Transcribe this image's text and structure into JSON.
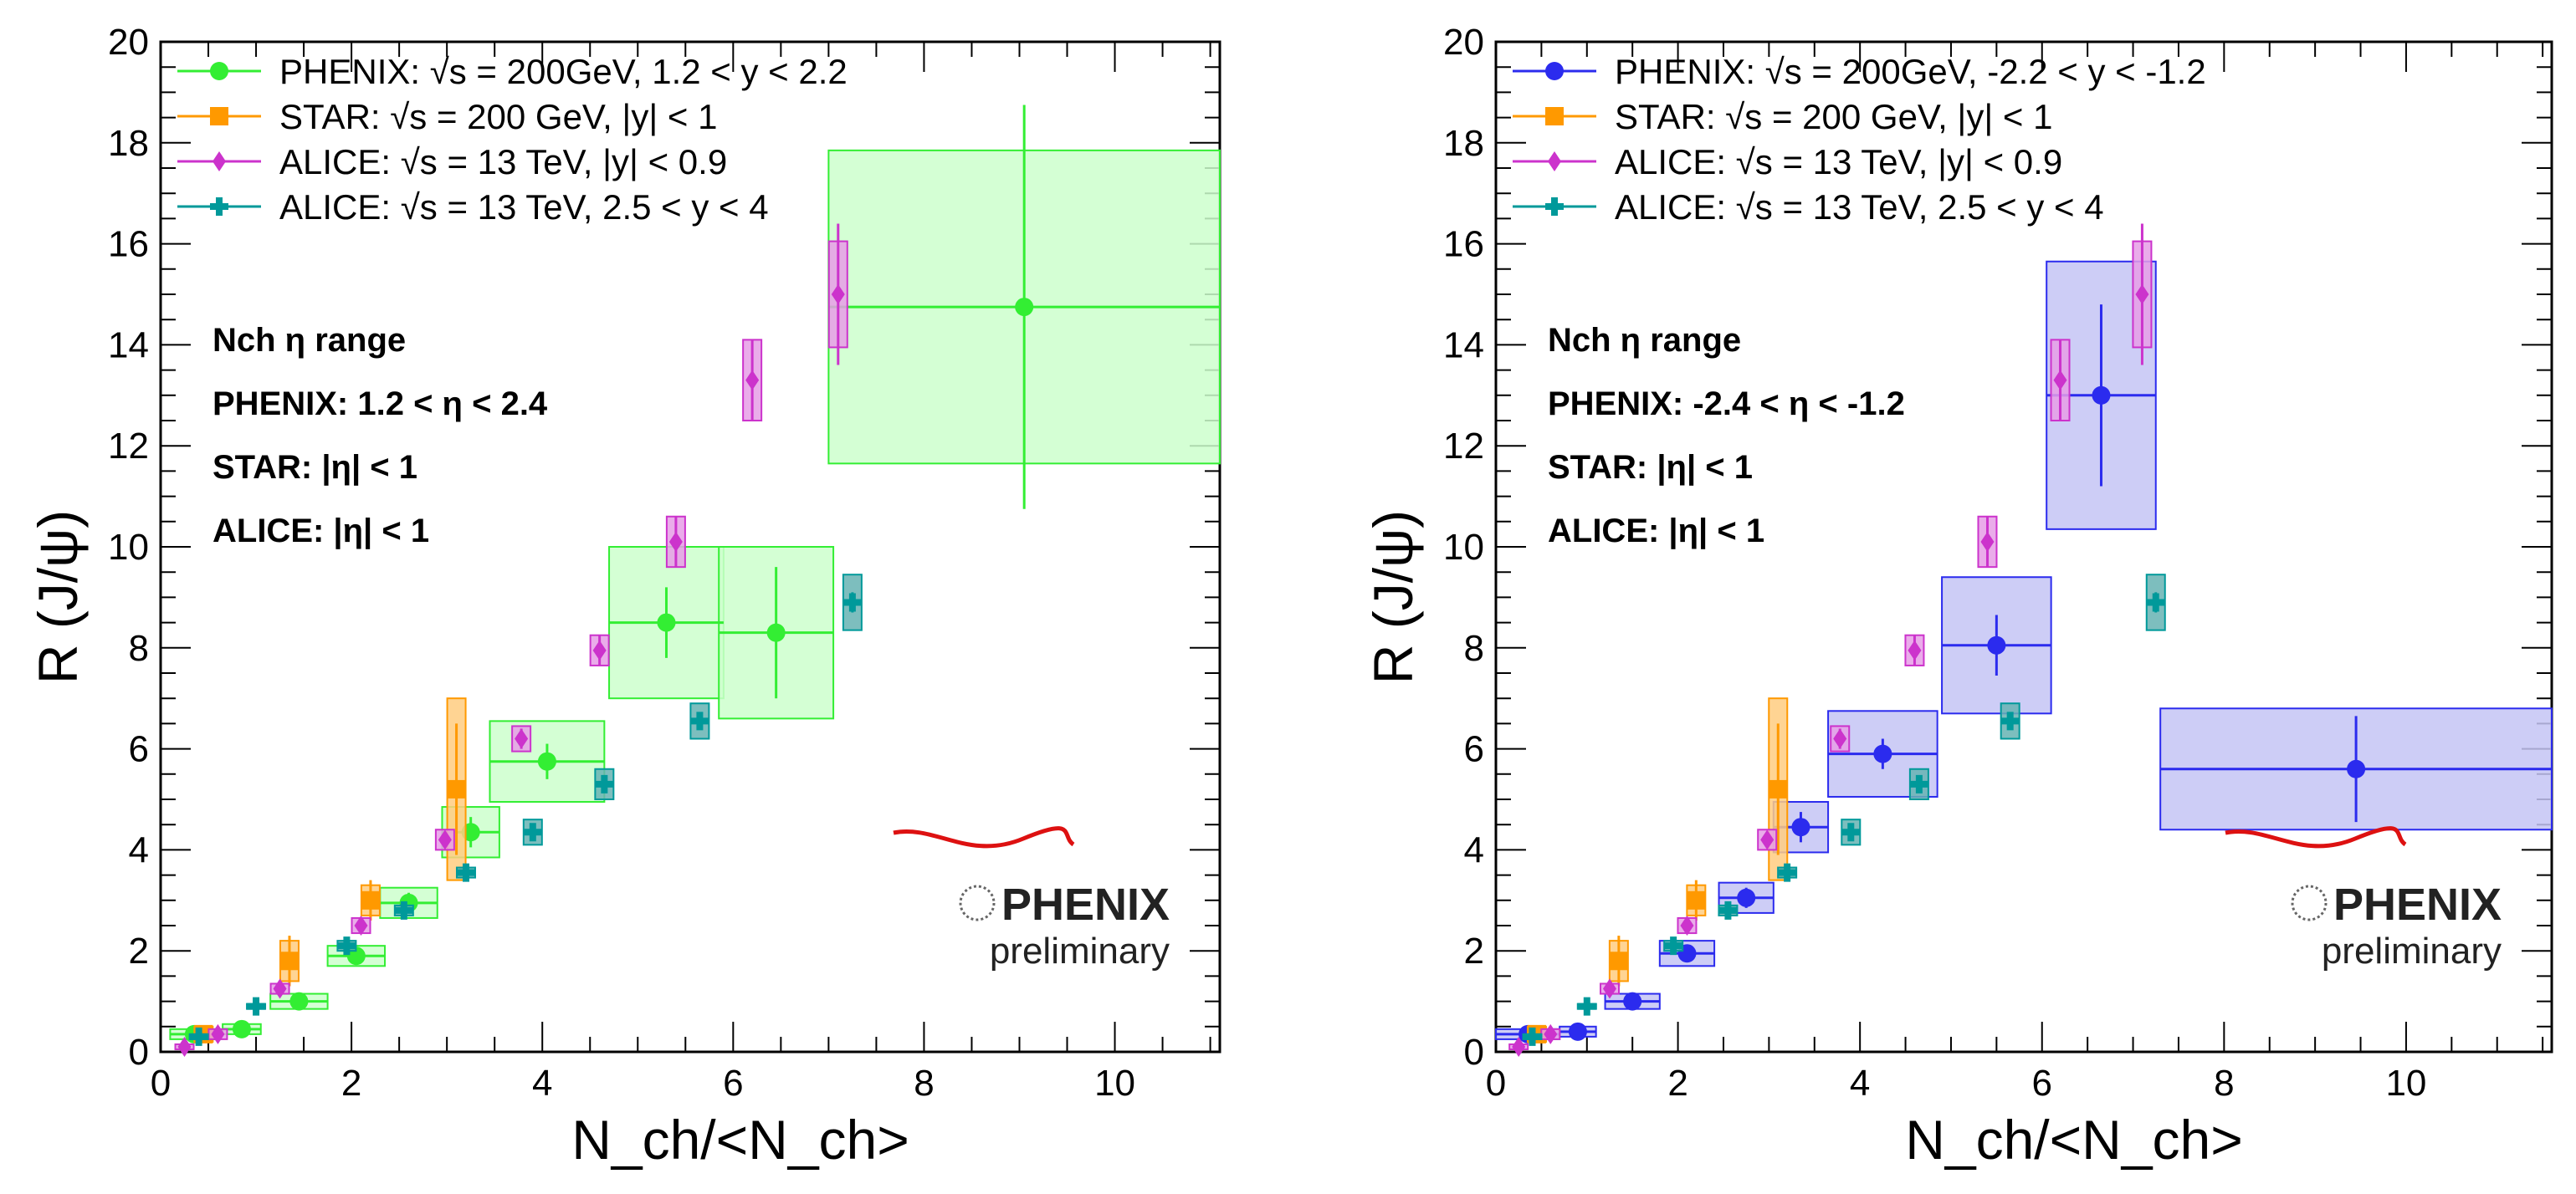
{
  "chart_data": [
    {
      "type": "scatter",
      "panel": "left",
      "title": "",
      "xlabel": "N_ch/<N_ch>",
      "ylabel": "R (J/ψ)",
      "xlim": [
        0,
        11.1
      ],
      "ylim": [
        0,
        20
      ],
      "xticks": [
        "0",
        "2",
        "4",
        "6",
        "8",
        "10"
      ],
      "yticks": [
        "0",
        "2",
        "4",
        "6",
        "8",
        "10",
        "12",
        "14",
        "16",
        "18",
        "20"
      ],
      "notes": [
        "Nch η range",
        "PHENIX: 1.2 < η < 2.4",
        "STAR: |η| < 1",
        "ALICE: |η| < 1"
      ],
      "logo": {
        "text": "PHENIX",
        "subtitle": "preliminary"
      },
      "series": [
        {
          "name": "PHENIX: √s = 200GeV, 1.2 < y < 2.2",
          "color": "#33ee33",
          "fill": "#ccffcc",
          "marker": "circle",
          "points": [
            {
              "x": 0.35,
              "y": 0.35,
              "xerr": 0.25,
              "yerr": 0.05,
              "sy": 0.1
            },
            {
              "x": 0.85,
              "y": 0.45,
              "xerr": 0.2,
              "yerr": 0.05,
              "sy": 0.1
            },
            {
              "x": 1.45,
              "y": 1.0,
              "xerr": 0.3,
              "yerr": 0.1,
              "sy": 0.15
            },
            {
              "x": 2.05,
              "y": 1.9,
              "xerr": 0.3,
              "yerr": 0.15,
              "sy": 0.2
            },
            {
              "x": 2.6,
              "y": 2.95,
              "xerr": 0.3,
              "yerr": 0.2,
              "sy": 0.3
            },
            {
              "x": 3.25,
              "y": 4.35,
              "xerr": 0.3,
              "yerr": 0.3,
              "sy": 0.5
            },
            {
              "x": 4.05,
              "y": 5.75,
              "xerr": 0.6,
              "yerr": 0.35,
              "sy": 0.8
            },
            {
              "x": 5.3,
              "y": 8.5,
              "xerr": 0.6,
              "yerr": 0.7,
              "sy": 1.5
            },
            {
              "x": 6.45,
              "y": 8.3,
              "xerr": 0.6,
              "yerr": 1.3,
              "sy": 1.7
            },
            {
              "x": 9.05,
              "y": 14.75,
              "xerr": 2.05,
              "yerr": 4.0,
              "sy": 3.1
            }
          ]
        },
        {
          "name": "STAR: √s = 200 GeV, |y| < 1",
          "color": "#ff9900",
          "fill": "#ffcc80",
          "marker": "square",
          "points": [
            {
              "x": 0.45,
              "y": 0.35,
              "xerr": 0,
              "yerr": 0.1,
              "sy": 0.15
            },
            {
              "x": 1.35,
              "y": 1.8,
              "xerr": 0,
              "yerr": 0.5,
              "sy": 0.4
            },
            {
              "x": 2.2,
              "y": 3.0,
              "xerr": 0,
              "yerr": 0.4,
              "sy": 0.3
            },
            {
              "x": 3.1,
              "y": 5.2,
              "xerr": 0,
              "yerr": 1.3,
              "sy": 1.8
            }
          ]
        },
        {
          "name": "ALICE: √s = 13 TeV, |y| < 0.9",
          "color": "#cc33cc",
          "fill": "#e69ee6",
          "marker": "diamond",
          "points": [
            {
              "x": 0.25,
              "y": 0.1,
              "xerr": 0,
              "yerr": 0.05,
              "sy": 0.05
            },
            {
              "x": 0.6,
              "y": 0.35,
              "xerr": 0,
              "yerr": 0.05,
              "sy": 0.1
            },
            {
              "x": 1.25,
              "y": 1.25,
              "xerr": 0,
              "yerr": 0.1,
              "sy": 0.1
            },
            {
              "x": 2.1,
              "y": 2.5,
              "xerr": 0,
              "yerr": 0.1,
              "sy": 0.15
            },
            {
              "x": 2.98,
              "y": 4.2,
              "xerr": 0,
              "yerr": 0.15,
              "sy": 0.2
            },
            {
              "x": 3.78,
              "y": 6.2,
              "xerr": 0,
              "yerr": 0.2,
              "sy": 0.25
            },
            {
              "x": 4.6,
              "y": 7.95,
              "xerr": 0,
              "yerr": 0.3,
              "sy": 0.3
            },
            {
              "x": 5.4,
              "y": 10.1,
              "xerr": 0,
              "yerr": 0.5,
              "sy": 0.5
            },
            {
              "x": 6.2,
              "y": 13.3,
              "xerr": 0,
              "yerr": 0.8,
              "sy": 0.8
            },
            {
              "x": 7.1,
              "y": 15.0,
              "xerr": 0,
              "yerr": 1.4,
              "sy": 1.05
            }
          ]
        },
        {
          "name": "ALICE: √s = 13 TeV, 2.5 < y < 4",
          "color": "#00999a",
          "fill": "#66b3b3",
          "marker": "cross",
          "points": [
            {
              "x": 0.4,
              "y": 0.3,
              "xerr": 0,
              "yerr": 0.03,
              "sy": 0.05
            },
            {
              "x": 1.0,
              "y": 0.9,
              "xerr": 0,
              "yerr": 0.05,
              "sy": 0.05
            },
            {
              "x": 1.95,
              "y": 2.1,
              "xerr": 0,
              "yerr": 0.05,
              "sy": 0.1
            },
            {
              "x": 2.55,
              "y": 2.8,
              "xerr": 0,
              "yerr": 0.05,
              "sy": 0.1
            },
            {
              "x": 3.2,
              "y": 3.55,
              "xerr": 0,
              "yerr": 0.05,
              "sy": 0.1
            },
            {
              "x": 3.9,
              "y": 4.35,
              "xerr": 0,
              "yerr": 0.1,
              "sy": 0.25
            },
            {
              "x": 4.65,
              "y": 5.3,
              "xerr": 0,
              "yerr": 0.1,
              "sy": 0.3
            },
            {
              "x": 5.65,
              "y": 6.55,
              "xerr": 0,
              "yerr": 0.15,
              "sy": 0.35
            },
            {
              "x": 7.25,
              "y": 8.9,
              "xerr": 0,
              "yerr": 0.2,
              "sy": 0.55
            }
          ]
        }
      ]
    },
    {
      "type": "scatter",
      "panel": "right",
      "title": "",
      "xlabel": "N_ch/<N_ch>",
      "ylabel": "R (J/ψ)",
      "xlim": [
        0,
        11.6
      ],
      "ylim": [
        0,
        20
      ],
      "xticks": [
        "0",
        "2",
        "4",
        "6",
        "8",
        "10"
      ],
      "yticks": [
        "0",
        "2",
        "4",
        "6",
        "8",
        "10",
        "12",
        "14",
        "16",
        "18",
        "20"
      ],
      "notes": [
        "Nch η range",
        "PHENIX: -2.4 < η < -1.2",
        "STAR: |η| < 1",
        "ALICE: |η| < 1"
      ],
      "logo": {
        "text": "PHENIX",
        "subtitle": "preliminary"
      },
      "series": [
        {
          "name": "PHENIX: √s = 200GeV, -2.2 < y < -1.2",
          "color": "#2b2bee",
          "fill": "#c4c4f5",
          "marker": "circle",
          "points": [
            {
              "x": 0.35,
              "y": 0.35,
              "xerr": 0.35,
              "yerr": 0.05,
              "sy": 0.1
            },
            {
              "x": 0.9,
              "y": 0.4,
              "xerr": 0.2,
              "yerr": 0.05,
              "sy": 0.1
            },
            {
              "x": 1.5,
              "y": 1.0,
              "xerr": 0.3,
              "yerr": 0.1,
              "sy": 0.15
            },
            {
              "x": 2.1,
              "y": 1.95,
              "xerr": 0.3,
              "yerr": 0.15,
              "sy": 0.25
            },
            {
              "x": 2.75,
              "y": 3.05,
              "xerr": 0.3,
              "yerr": 0.2,
              "sy": 0.3
            },
            {
              "x": 3.35,
              "y": 4.45,
              "xerr": 0.3,
              "yerr": 0.3,
              "sy": 0.5
            },
            {
              "x": 4.25,
              "y": 5.9,
              "xerr": 0.6,
              "yerr": 0.3,
              "sy": 0.85
            },
            {
              "x": 5.5,
              "y": 8.05,
              "xerr": 0.6,
              "yerr": 0.6,
              "sy": 1.35
            },
            {
              "x": 6.65,
              "y": 13.0,
              "xerr": 0.6,
              "yerr": 1.8,
              "sy": 2.65
            },
            {
              "x": 9.45,
              "y": 5.6,
              "xerr": 2.15,
              "yerr": 1.05,
              "sy": 1.2
            }
          ]
        },
        {
          "name": "STAR: √s = 200 GeV, |y| < 1",
          "color": "#ff9900",
          "fill": "#ffcc80",
          "marker": "square",
          "points": [
            {
              "x": 0.45,
              "y": 0.35,
              "xerr": 0,
              "yerr": 0.1,
              "sy": 0.15
            },
            {
              "x": 1.35,
              "y": 1.8,
              "xerr": 0,
              "yerr": 0.5,
              "sy": 0.4
            },
            {
              "x": 2.2,
              "y": 3.0,
              "xerr": 0,
              "yerr": 0.4,
              "sy": 0.3
            },
            {
              "x": 3.1,
              "y": 5.2,
              "xerr": 0,
              "yerr": 1.3,
              "sy": 1.8
            }
          ]
        },
        {
          "name": "ALICE: √s = 13 TeV, |y| < 0.9",
          "color": "#cc33cc",
          "fill": "#e69ee6",
          "marker": "diamond",
          "points": [
            {
              "x": 0.25,
              "y": 0.1,
              "xerr": 0,
              "yerr": 0.05,
              "sy": 0.05
            },
            {
              "x": 0.6,
              "y": 0.35,
              "xerr": 0,
              "yerr": 0.05,
              "sy": 0.1
            },
            {
              "x": 1.25,
              "y": 1.25,
              "xerr": 0,
              "yerr": 0.1,
              "sy": 0.1
            },
            {
              "x": 2.1,
              "y": 2.5,
              "xerr": 0,
              "yerr": 0.1,
              "sy": 0.15
            },
            {
              "x": 2.98,
              "y": 4.2,
              "xerr": 0,
              "yerr": 0.15,
              "sy": 0.2
            },
            {
              "x": 3.78,
              "y": 6.2,
              "xerr": 0,
              "yerr": 0.2,
              "sy": 0.25
            },
            {
              "x": 4.6,
              "y": 7.95,
              "xerr": 0,
              "yerr": 0.3,
              "sy": 0.3
            },
            {
              "x": 5.4,
              "y": 10.1,
              "xerr": 0,
              "yerr": 0.5,
              "sy": 0.5
            },
            {
              "x": 6.2,
              "y": 13.3,
              "xerr": 0,
              "yerr": 0.8,
              "sy": 0.8
            },
            {
              "x": 7.1,
              "y": 15.0,
              "xerr": 0,
              "yerr": 1.4,
              "sy": 1.05
            }
          ]
        },
        {
          "name": "ALICE: √s = 13 TeV, 2.5 < y < 4",
          "color": "#00999a",
          "fill": "#66b3b3",
          "marker": "cross",
          "points": [
            {
              "x": 0.4,
              "y": 0.3,
              "xerr": 0,
              "yerr": 0.03,
              "sy": 0.05
            },
            {
              "x": 1.0,
              "y": 0.9,
              "xerr": 0,
              "yerr": 0.05,
              "sy": 0.05
            },
            {
              "x": 1.95,
              "y": 2.1,
              "xerr": 0,
              "yerr": 0.05,
              "sy": 0.1
            },
            {
              "x": 2.55,
              "y": 2.8,
              "xerr": 0,
              "yerr": 0.05,
              "sy": 0.1
            },
            {
              "x": 3.2,
              "y": 3.55,
              "xerr": 0,
              "yerr": 0.05,
              "sy": 0.1
            },
            {
              "x": 3.9,
              "y": 4.35,
              "xerr": 0,
              "yerr": 0.1,
              "sy": 0.25
            },
            {
              "x": 4.65,
              "y": 5.3,
              "xerr": 0,
              "yerr": 0.1,
              "sy": 0.3
            },
            {
              "x": 5.65,
              "y": 6.55,
              "xerr": 0,
              "yerr": 0.15,
              "sy": 0.35
            },
            {
              "x": 7.25,
              "y": 8.9,
              "xerr": 0,
              "yerr": 0.2,
              "sy": 0.55
            }
          ]
        }
      ]
    }
  ]
}
